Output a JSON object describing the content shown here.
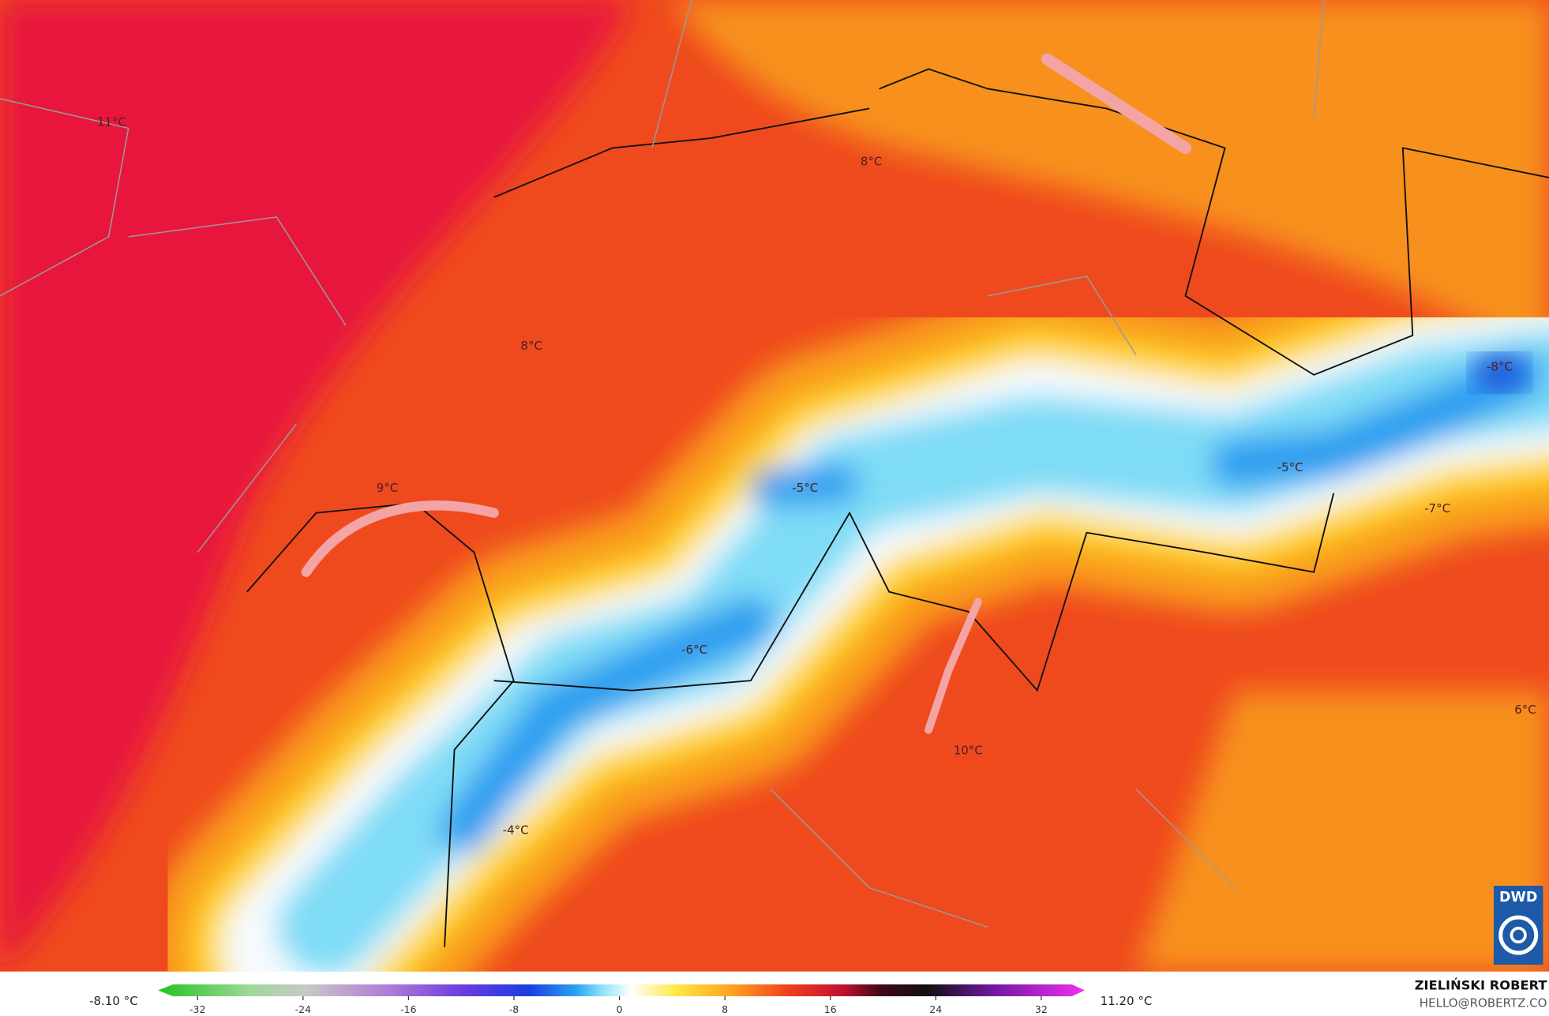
{
  "map": {
    "labels": [
      "11°C",
      "8°C",
      "8°C",
      "9°C",
      "-5°C",
      "-6°C",
      "-4°C",
      "10°C",
      "-5°C",
      "-8°C",
      "-7°C",
      "6°C"
    ]
  },
  "colorbar": {
    "min_label": "-8.10 °C",
    "max_label": "11.20 °C",
    "ticks": [
      -32,
      -24,
      -16,
      -8,
      0,
      8,
      16,
      24,
      32
    ]
  },
  "credit": {
    "name": "ZIELIŃSKI ROBERT",
    "contact": "HELLO@ROBERTZ.CO",
    "logo": "DWD"
  }
}
